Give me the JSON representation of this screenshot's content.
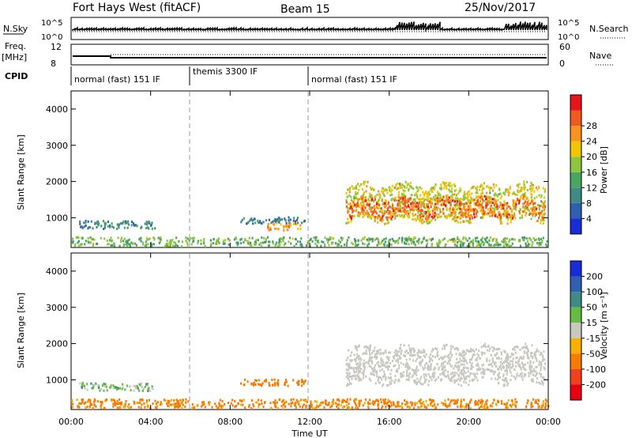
{
  "header": {
    "station": "Fort Hays West (fitACF)",
    "beam": "Beam 15",
    "date": "25/Nov/2017"
  },
  "panels": {
    "nsky": {
      "left_label": "N.Sky",
      "right_label": "N.Search",
      "left_ticks": [
        "10^5",
        "10^0"
      ],
      "right_ticks": [
        "10^5",
        "10^0"
      ]
    },
    "freq": {
      "left_label": "Freq.",
      "left_unit": "[MHz]",
      "left_ticks": [
        "12",
        "8"
      ],
      "right_label": "Nave",
      "right_ticks": [
        "60",
        "0"
      ]
    },
    "cpid": {
      "label": "CPID",
      "modes": [
        {
          "name": "normal (fast) 151 IF",
          "start_h": 0,
          "end_h": 6
        },
        {
          "name": "themis 3300 IF",
          "start_h": 6,
          "end_h": 12
        },
        {
          "name": "normal (fast) 151 IF",
          "start_h": 12,
          "end_h": 24
        }
      ]
    }
  },
  "axes": {
    "y_label": "Slant Range [km]",
    "y_ticks": [
      "1000",
      "2000",
      "3000",
      "4000"
    ],
    "x_label": "Time UT",
    "x_ticks": [
      "00:00",
      "04:00",
      "08:00",
      "12:00",
      "16:00",
      "20:00",
      "00:00"
    ]
  },
  "colorbars": {
    "power": {
      "label": "Power [dB]",
      "ticks": [
        "4",
        "8",
        "12",
        "16",
        "20",
        "24",
        "28"
      ],
      "colors": [
        "#1a2bd8",
        "#2f5fb0",
        "#3f8a84",
        "#4aa560",
        "#8cc63f",
        "#f2c500",
        "#f7931e",
        "#f05a1e",
        "#e8141b"
      ]
    },
    "velocity": {
      "label": "Velocity [m s⁻¹]",
      "ticks": [
        "200",
        "100",
        "50",
        "15",
        "-15",
        "-50",
        "-100",
        "-200"
      ],
      "colors": [
        "#1a2bd8",
        "#2f5fb0",
        "#3f8a84",
        "#66bb44",
        "#c8c8c0",
        "#f7b000",
        "#f77b00",
        "#f0401e",
        "#e80012"
      ]
    }
  },
  "chart_data": [
    {
      "type": "heatmap",
      "name": "Power",
      "x_range_hours": [
        0,
        24
      ],
      "y_range_km": [
        180,
        4500
      ],
      "colorbar_range_db": [
        0,
        32
      ],
      "regions": [
        {
          "t0": 0.4,
          "t1": 4.2,
          "r0": 680,
          "r1": 900,
          "value_db": 9
        },
        {
          "t0": 0.0,
          "t1": 24.0,
          "r0": 200,
          "r1": 450,
          "value_db": 14
        },
        {
          "t0": 8.5,
          "t1": 11.8,
          "r0": 820,
          "r1": 1000,
          "value_db": 8
        },
        {
          "t0": 9.8,
          "t1": 11.5,
          "r0": 640,
          "r1": 840,
          "value_db": 22
        },
        {
          "t0": 13.8,
          "t1": 23.8,
          "r0": 900,
          "r1": 1900,
          "value_db": 18
        },
        {
          "t0": 13.8,
          "t1": 23.8,
          "r0": 1000,
          "r1": 1500,
          "value_db": 26
        }
      ]
    },
    {
      "type": "heatmap",
      "name": "Velocity",
      "x_range_hours": [
        0,
        24
      ],
      "y_range_km": [
        180,
        4500
      ],
      "regions": [
        {
          "t0": 0.4,
          "t1": 4.2,
          "r0": 680,
          "r1": 900,
          "value_ms": 20
        },
        {
          "t0": 0.0,
          "t1": 24.0,
          "r0": 200,
          "r1": 450,
          "value_ms": -40
        },
        {
          "t0": 8.5,
          "t1": 11.8,
          "r0": 820,
          "r1": 1000,
          "value_ms": -60
        },
        {
          "t0": 13.8,
          "t1": 23.8,
          "r0": 900,
          "r1": 1900,
          "value_ms": 0
        }
      ]
    }
  ]
}
